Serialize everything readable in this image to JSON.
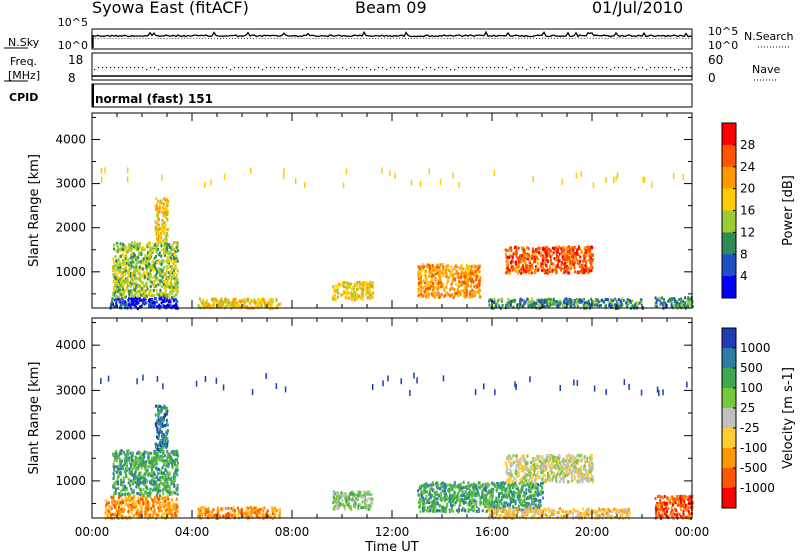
{
  "header": {
    "station": "Syowa East (fitACF)",
    "beam": "Beam 09",
    "date": "01/Jul/2010"
  },
  "strip": {
    "nsky_label": "N.Sky",
    "nsearch_label": "N.Search",
    "freq_label": "Freq.",
    "freq_unit": "[MHz]",
    "nave_label": "Nave",
    "cpid_label": "CPID",
    "cpid_value": "normal (fast) 151",
    "noise_ticks_left": [
      "10^5",
      "10^0"
    ],
    "noise_ticks_right": [
      "10^5",
      "10^0"
    ],
    "freq_ticks": [
      "18",
      "8"
    ],
    "nave_ticks": [
      "60",
      "0"
    ]
  },
  "chart_data": [
    {
      "type": "heatmap",
      "title": "",
      "xlabel": "",
      "ylabel": "Slant Range [km]",
      "x_ticks": [
        "00:00",
        "04:00",
        "08:00",
        "12:00",
        "16:00",
        "20:00",
        "00:00"
      ],
      "xlim_hours": [
        0,
        24
      ],
      "y_ticks": [
        1000,
        2000,
        3000,
        4000
      ],
      "ylim": [
        180,
        4600
      ],
      "colorbar": {
        "label": "Power [dB]",
        "ticks": [
          "28",
          "24",
          "20",
          "16",
          "12",
          "8",
          "4"
        ],
        "colors": [
          "#ff0000",
          "#ff5500",
          "#ff9900",
          "#ffcc00",
          "#9acd32",
          "#2e8b57",
          "#1e50c8",
          "#0000ff"
        ]
      },
      "regions": [
        {
          "t0": 0.7,
          "t1": 1.4,
          "r0": 200,
          "r1": 450,
          "level": 6
        },
        {
          "t0": 1.4,
          "t1": 3.4,
          "r0": 200,
          "r1": 450,
          "level": 7
        },
        {
          "t0": 0.8,
          "t1": 3.4,
          "r0": 450,
          "r1": 1700,
          "level": 4
        },
        {
          "t0": 2.5,
          "t1": 3.0,
          "r0": 1700,
          "r1": 2700,
          "level": 3
        },
        {
          "t0": 4.2,
          "t1": 7.5,
          "r0": 200,
          "r1": 420,
          "level": 3
        },
        {
          "t0": 9.6,
          "t1": 11.2,
          "r0": 400,
          "r1": 800,
          "level": 3
        },
        {
          "t0": 13.0,
          "t1": 15.5,
          "r0": 450,
          "r1": 1200,
          "level": 2
        },
        {
          "t0": 15.8,
          "t1": 22.0,
          "r0": 200,
          "r1": 420,
          "level": 5
        },
        {
          "t0": 16.5,
          "t1": 20.0,
          "r0": 1000,
          "r1": 1600,
          "level": 1
        },
        {
          "t0": 22.5,
          "t1": 24.0,
          "r0": 200,
          "r1": 450,
          "level": 5
        }
      ]
    },
    {
      "type": "heatmap",
      "title": "",
      "xlabel": "Time UT",
      "ylabel": "Slant Range [km]",
      "x_ticks": [
        "00:00",
        "04:00",
        "08:00",
        "12:00",
        "16:00",
        "20:00",
        "00:00"
      ],
      "xlim_hours": [
        0,
        24
      ],
      "y_ticks": [
        1000,
        2000,
        3000,
        4000
      ],
      "ylim": [
        180,
        4600
      ],
      "colorbar": {
        "label": "Velocity [m s-1]",
        "ticks": [
          "1000",
          "500",
          "100",
          "25",
          "-25",
          "-100",
          "-500",
          "-1000"
        ],
        "colors": [
          "#1e3cb4",
          "#2e7da8",
          "#3caa50",
          "#78c83c",
          "#c0c0c0",
          "#ffcc33",
          "#ff9900",
          "#ff5500",
          "#ff0000"
        ]
      },
      "regions": [
        {
          "t0": 0.5,
          "t1": 3.4,
          "r0": 200,
          "r1": 700,
          "level": 6
        },
        {
          "t0": 0.8,
          "t1": 3.4,
          "r0": 700,
          "r1": 1700,
          "level": 2
        },
        {
          "t0": 2.5,
          "t1": 3.0,
          "r0": 1700,
          "r1": 2700,
          "level": 1
        },
        {
          "t0": 4.2,
          "t1": 7.5,
          "r0": 200,
          "r1": 450,
          "level": 6
        },
        {
          "t0": 9.6,
          "t1": 11.2,
          "r0": 400,
          "r1": 800,
          "level": 3
        },
        {
          "t0": 13.0,
          "t1": 18.0,
          "r0": 350,
          "r1": 1000,
          "level": 2
        },
        {
          "t0": 15.8,
          "t1": 21.5,
          "r0": 200,
          "r1": 420,
          "level": 5
        },
        {
          "t0": 16.5,
          "t1": 20.0,
          "r0": 1000,
          "r1": 1600,
          "level": 4
        },
        {
          "t0": 22.5,
          "t1": 24.0,
          "r0": 200,
          "r1": 700,
          "level": 7
        }
      ]
    }
  ]
}
